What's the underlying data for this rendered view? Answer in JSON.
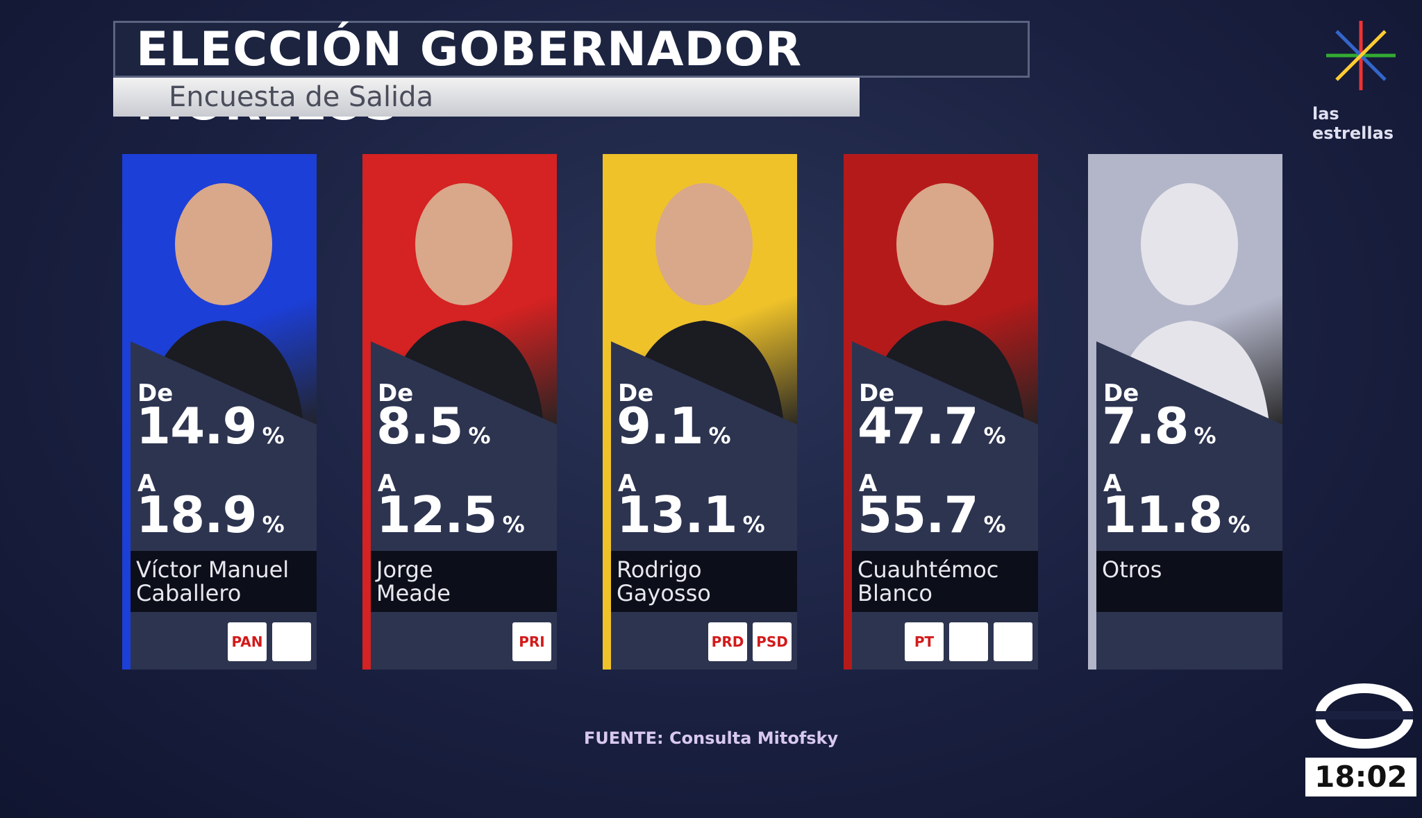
{
  "header": {
    "title": "ELECCIÓN GOBERNADOR MORELOS",
    "subtitle": "Encuesta de Salida"
  },
  "labels": {
    "from": "De",
    "to": "A",
    "unit": "%"
  },
  "candidates": [
    {
      "name": [
        "Víctor Manuel",
        "Caballero"
      ],
      "from": 14.9,
      "to": 18.9,
      "color": "#1c3fd8",
      "parties": [
        "PAN",
        ""
      ]
    },
    {
      "name": [
        "Jorge",
        "Meade"
      ],
      "from": 8.5,
      "to": 12.5,
      "color": "#d52222",
      "parties": [
        "PRI"
      ]
    },
    {
      "name": [
        "Rodrigo",
        "Gayosso"
      ],
      "from": 9.1,
      "to": 13.1,
      "color": "#efc22a",
      "parties": [
        "PRD",
        "PSD"
      ]
    },
    {
      "name": [
        "Cuauhtémoc",
        "Blanco"
      ],
      "from": 47.7,
      "to": 55.7,
      "color": "#b51a1a",
      "parties": [
        "PT",
        "",
        ""
      ]
    },
    {
      "name": [
        "Otros"
      ],
      "from": 7.8,
      "to": 11.8,
      "color": "#b3b6c9",
      "parties": []
    }
  ],
  "source": {
    "label": "FUENTE:",
    "text": "Consulta Mitofsky"
  },
  "channel": "las estrellas",
  "clock": "18:02"
}
